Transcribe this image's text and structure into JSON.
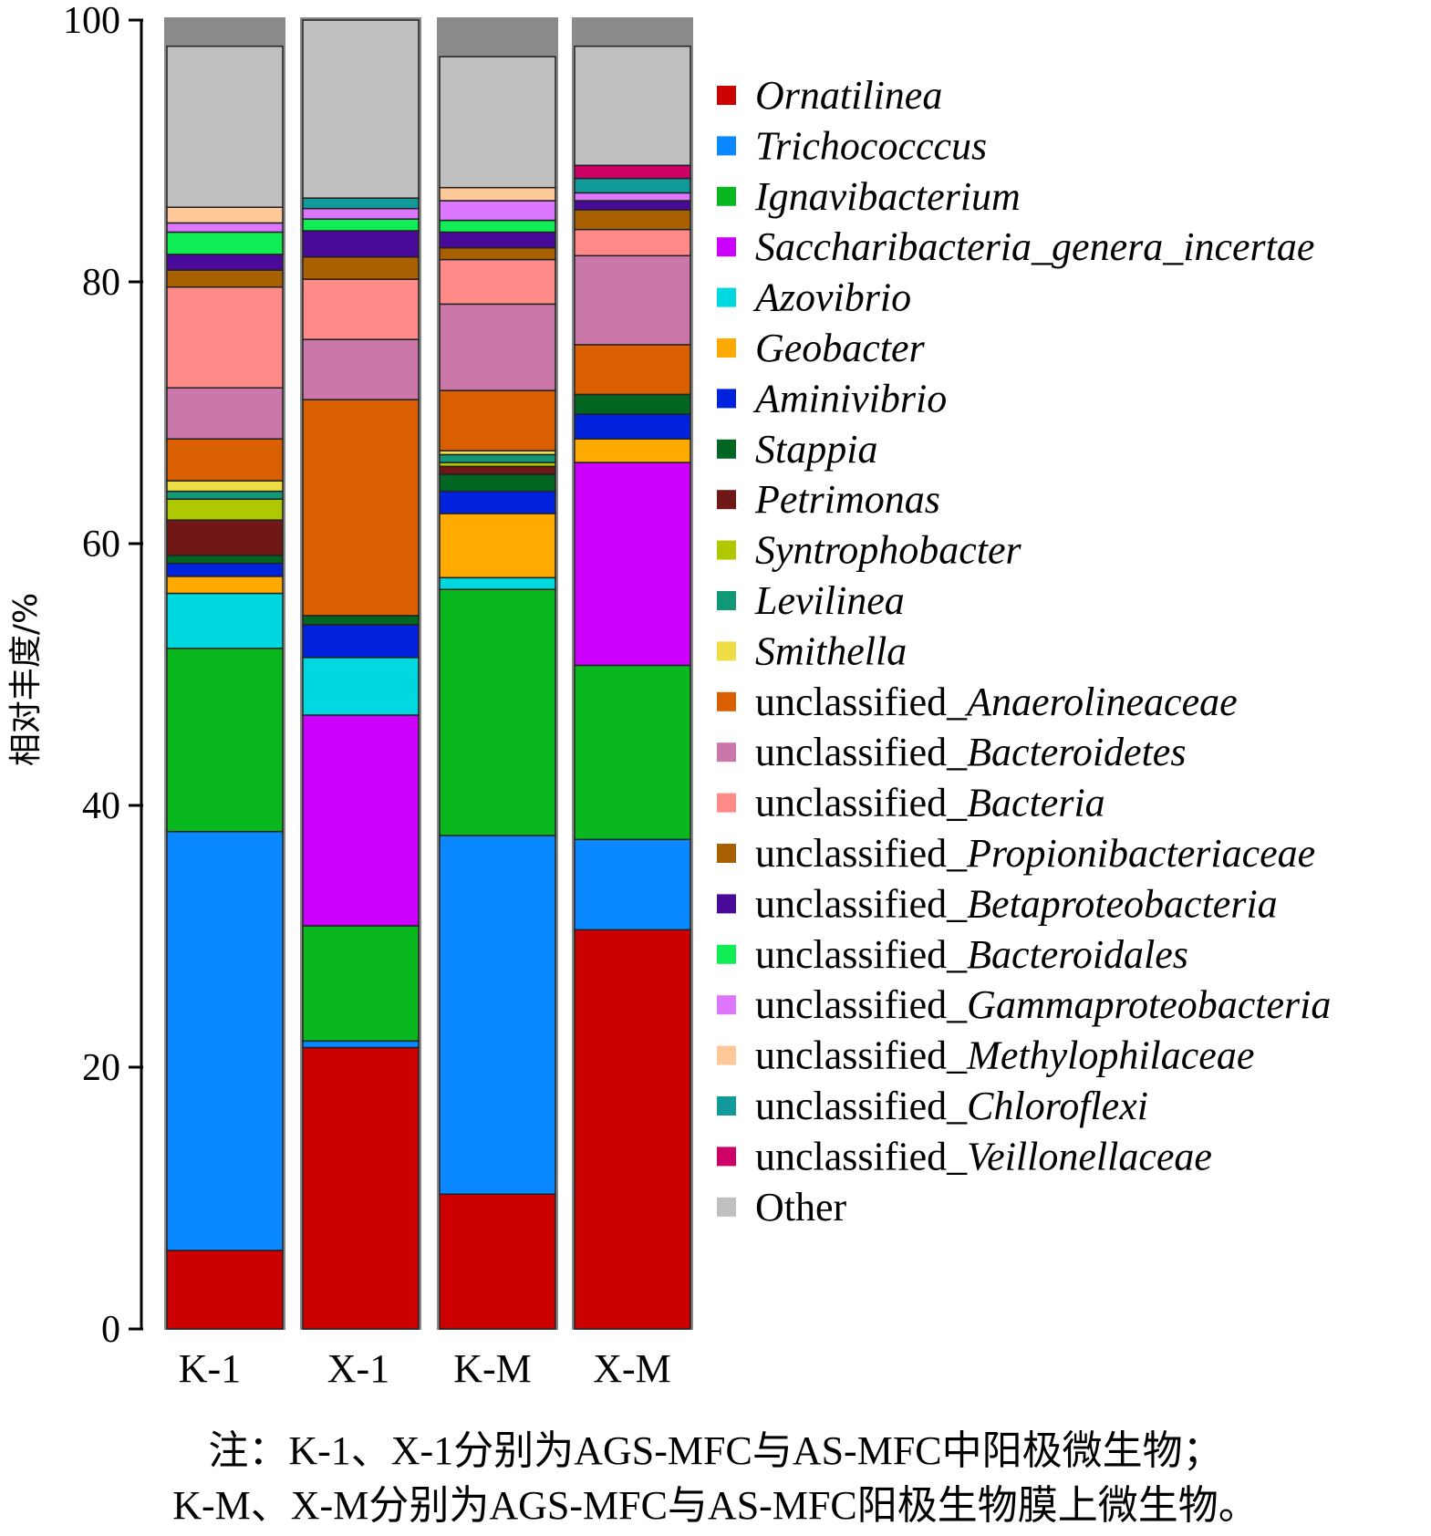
{
  "chart_data": {
    "type": "bar",
    "stacked": true,
    "ylabel": "相对丰度/%",
    "ylim": [
      0,
      100
    ],
    "yticks": [
      "0",
      "20",
      "40",
      "60",
      "80",
      "100"
    ],
    "categories": [
      "K-1",
      "X-1",
      "K-M",
      "X-M"
    ],
    "series": [
      {
        "name": "Ornatilinea",
        "italic": true,
        "color": "#cc0000",
        "values": [
          6.0,
          21.5,
          10.3,
          30.5
        ]
      },
      {
        "name": "Trichococccus",
        "italic": true,
        "color": "#0a88ff",
        "values": [
          32.0,
          0.5,
          27.4,
          6.9
        ]
      },
      {
        "name": "Ignavibacterium",
        "italic": true,
        "color": "#08b81e",
        "values": [
          14.0,
          8.8,
          18.8,
          13.3
        ]
      },
      {
        "name": "Saccharibacteria_genera_incertae",
        "italic": true,
        "color": "#cc00ff",
        "values": [
          0.0,
          16.1,
          0.0,
          15.5
        ]
      },
      {
        "name": "Azovibrio",
        "italic": true,
        "color": "#00d8e0",
        "values": [
          4.2,
          4.4,
          0.9,
          0.0
        ]
      },
      {
        "name": "Geobacter",
        "italic": true,
        "color": "#ffaa00",
        "values": [
          1.3,
          0.0,
          4.9,
          1.8
        ]
      },
      {
        "name": "Aminivibrio",
        "italic": true,
        "color": "#0022dd",
        "values": [
          1.0,
          2.5,
          1.7,
          1.9
        ]
      },
      {
        "name": "Stappia",
        "italic": true,
        "color": "#006622",
        "values": [
          0.6,
          0.7,
          1.3,
          1.5
        ]
      },
      {
        "name": "Petrimonas",
        "italic": true,
        "color": "#701818",
        "values": [
          2.7,
          0.0,
          0.6,
          0.0
        ]
      },
      {
        "name": "Syntrophobacter",
        "italic": true,
        "color": "#b0c800",
        "values": [
          1.6,
          0.0,
          0.3,
          0.0
        ]
      },
      {
        "name": "Levilinea",
        "italic": true,
        "color": "#119977",
        "values": [
          0.6,
          0.0,
          0.6,
          0.0
        ]
      },
      {
        "name": "Smithella",
        "italic": true,
        "color": "#eedd44",
        "values": [
          0.8,
          0.0,
          0.3,
          0.0
        ]
      },
      {
        "name": "unclassified_Anaerolineaceae",
        "prefix": "unclassified_",
        "rest": "Anaerolineaceae",
        "color": "#d95f00",
        "values": [
          3.2,
          16.5,
          4.6,
          3.8
        ]
      },
      {
        "name": "unclassified_Bacteroidetes",
        "prefix": "unclassified_",
        "rest": "Bacteroidetes",
        "color": "#cc77aa",
        "values": [
          3.9,
          4.6,
          6.6,
          6.8
        ]
      },
      {
        "name": "unclassified_Bacteria",
        "prefix": "unclassified_",
        "rest": "Bacteria",
        "color": "#ff8a88",
        "values": [
          7.7,
          4.6,
          3.4,
          2.0
        ]
      },
      {
        "name": "unclassified_Propionibacteriaceae",
        "prefix": "unclassified_",
        "rest": "Propionibacteriaceae",
        "color": "#a86000",
        "values": [
          1.3,
          1.7,
          0.9,
          1.5
        ]
      },
      {
        "name": "unclassified_Betaproteobacteria",
        "prefix": "unclassified_",
        "rest": "Betaproteobacteria",
        "color": "#4a0a99",
        "values": [
          1.2,
          2.0,
          1.2,
          0.7
        ]
      },
      {
        "name": "unclassified_Bacteroidales",
        "prefix": "unclassified_",
        "rest": "Bacteroidales",
        "color": "#11ee55",
        "values": [
          1.7,
          0.9,
          0.9,
          0.0
        ]
      },
      {
        "name": "unclassified_Gammaproteobacteria",
        "prefix": "unclassified_",
        "rest": "Gammaproteobacteria",
        "color": "#dd77ff",
        "values": [
          0.7,
          0.8,
          1.5,
          0.6
        ]
      },
      {
        "name": "unclassified_Methylophilaceae",
        "prefix": "unclassified_",
        "rest": "Methylophilaceae",
        "color": "#ffc898",
        "values": [
          1.2,
          0.0,
          1.0,
          0.0
        ]
      },
      {
        "name": "unclassified_Chloroflexi",
        "prefix": "unclassified_",
        "rest": "Chloroflexi",
        "color": "#129a9a",
        "values": [
          0.0,
          0.8,
          0.0,
          1.1
        ]
      },
      {
        "name": "unclassified_Veillonellaceae",
        "prefix": "unclassified_",
        "rest": "Veillonellaceae",
        "color": "#cc0066",
        "values": [
          0.0,
          0.0,
          0.0,
          1.0
        ]
      },
      {
        "name": "Other",
        "italic": false,
        "color": "#c0c0c0",
        "values": [
          12.3,
          13.6,
          10.0,
          9.1
        ]
      }
    ],
    "legend_position": "right"
  },
  "note": {
    "line1": "注：K-1、X-1分别为AGS-MFC与AS-MFC中阳极微生物；",
    "line2": "K-M、X-M分别为AGS-MFC与AS-MFC阳极生物膜上微生物。"
  }
}
